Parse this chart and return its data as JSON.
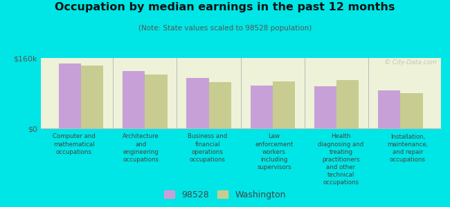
{
  "title": "Occupation by median earnings in the past 12 months",
  "subtitle": "(Note: State values scaled to 98528 population)",
  "background_color": "#00e5e5",
  "plot_bg_color": "#eef2d8",
  "categories": [
    "Computer and\nmathematical\noccupations",
    "Architecture\nand\nengineering\noccupations",
    "Business and\nfinancial\noperations\noccupations",
    "Law\nenforcement\nworkers\nincluding\nsupervisors",
    "Health\ndiagnosing and\ntreating\npractitioners\nand other\ntechnical\noccupations",
    "Installation,\nmaintenance,\nand repair\noccupations"
  ],
  "values_98528": [
    148000,
    130000,
    115000,
    97000,
    95000,
    87000
  ],
  "values_washington": [
    143000,
    122000,
    105000,
    107000,
    110000,
    80000
  ],
  "color_98528": "#c8a0d8",
  "color_washington": "#c8cc90",
  "ylim": [
    0,
    160000
  ],
  "ytick_labels": [
    "$0",
    "$160k"
  ],
  "legend_labels": [
    "98528",
    "Washington"
  ],
  "bar_width": 0.35,
  "watermark": "© City-Data.com"
}
